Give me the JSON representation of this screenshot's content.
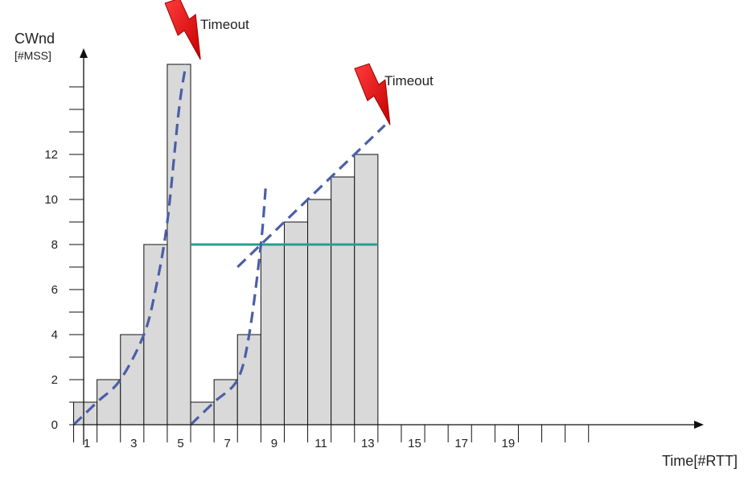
{
  "chart_data": {
    "type": "bar",
    "ylabel": "CWnd",
    "ylabel_unit": "[#MSS]",
    "xlabel": "Time[#RTT]",
    "x": [
      1,
      2,
      3,
      4,
      5,
      6,
      7,
      8,
      9,
      10,
      11,
      12,
      13
    ],
    "values": [
      1,
      2,
      4,
      8,
      16,
      1,
      2,
      4,
      8,
      9,
      10,
      11,
      12
    ],
    "ylim": [
      0,
      16
    ],
    "xlim": [
      0,
      22
    ],
    "y_ticks": [
      0,
      1,
      2,
      3,
      4,
      5,
      6,
      7,
      8,
      9,
      10,
      11,
      12,
      13,
      14,
      15
    ],
    "y_tick_labels": [
      {
        "value": 0,
        "label": "0"
      },
      {
        "value": 2,
        "label": "2"
      },
      {
        "value": 4,
        "label": "4"
      },
      {
        "value": 6,
        "label": "6"
      },
      {
        "value": 8,
        "label": "8"
      },
      {
        "value": 10,
        "label": "10"
      },
      {
        "value": 12,
        "label": "12"
      }
    ],
    "x_tick_labels": [
      {
        "value": 1,
        "label": "1"
      },
      {
        "value": 3,
        "label": "3"
      },
      {
        "value": 5,
        "label": "5"
      },
      {
        "value": 7,
        "label": "7"
      },
      {
        "value": 9,
        "label": "9"
      },
      {
        "value": 11,
        "label": "11"
      },
      {
        "value": 13,
        "label": "13"
      },
      {
        "value": 15,
        "label": "15"
      },
      {
        "value": 17,
        "label": "17"
      },
      {
        "value": 19,
        "label": "19"
      }
    ],
    "threshold": {
      "value": 8,
      "x_from": 5.5,
      "x_to": 13.5,
      "color": "#2a9d8f"
    },
    "slow_start_curves": [
      {
        "points": [
          [
            0.5,
            0
          ],
          [
            1.5,
            1
          ],
          [
            2.5,
            2
          ],
          [
            3.5,
            4
          ],
          [
            4,
            6
          ],
          [
            4.5,
            9
          ],
          [
            5,
            14
          ],
          [
            5.3,
            16
          ]
        ]
      },
      {
        "points": [
          [
            5.5,
            0
          ],
          [
            6.5,
            1
          ],
          [
            7.5,
            2
          ],
          [
            8,
            4
          ],
          [
            8.5,
            8
          ],
          [
            8.7,
            10.5
          ]
        ]
      }
    ],
    "congestion_avoidance_line": {
      "points": [
        [
          7.5,
          7
        ],
        [
          13.8,
          13.3
        ]
      ]
    },
    "curve_color": "#4a5fa8",
    "bar_color": "#d9d9d9",
    "timeouts": [
      {
        "label": "Timeout",
        "x": 5.3,
        "y": 16
      },
      {
        "label": "Timeout",
        "x": 13.4,
        "y": 13.1
      }
    ],
    "grid": false
  }
}
